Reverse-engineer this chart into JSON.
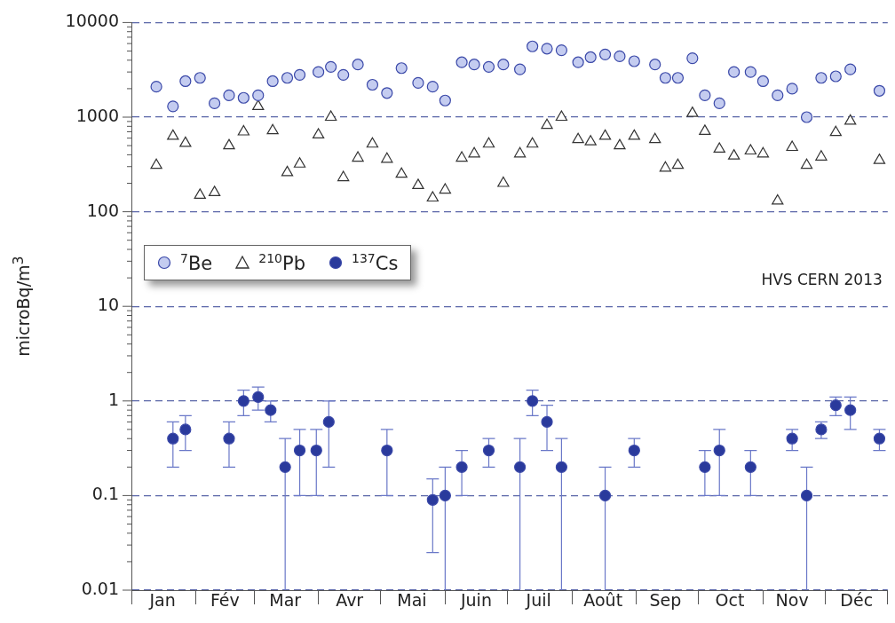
{
  "chart_data": {
    "type": "scatter",
    "ylabel": "microBq/m$^{3}$",
    "log": "y",
    "grid": "y",
    "legend": "left",
    "annotations": [
      "HVS CERN 2013"
    ],
    "xlim": [
      "--01-01",
      "--12-31"
    ],
    "xticks": [
      {
        "value": "--01-01",
        "label": null
      },
      {
        "value": "--01-16",
        "label": "Jan"
      },
      {
        "value": "--02-01",
        "label": null
      },
      {
        "value": "--02-15",
        "label": "Fév"
      },
      {
        "value": "--03-01",
        "label": null
      },
      {
        "value": "--03-16",
        "label": "Mar"
      },
      {
        "value": "--04-01",
        "label": null
      },
      {
        "value": "--04-16",
        "label": "Avr"
      },
      {
        "value": "--05-01",
        "label": null
      },
      {
        "value": "--05-16",
        "label": "Mai"
      },
      {
        "value": "--06-01",
        "label": null
      },
      {
        "value": "--06-16",
        "label": "Juin"
      },
      {
        "value": "--07-01",
        "label": null
      },
      {
        "value": "--07-16",
        "label": "Juil"
      },
      {
        "value": "--08-01",
        "label": null
      },
      {
        "value": "--08-16",
        "label": "Août"
      },
      {
        "value": "--09-01",
        "label": null
      },
      {
        "value": "--09-15",
        "label": "Sep"
      },
      {
        "value": "--10-01",
        "label": null
      },
      {
        "value": "--10-16",
        "label": "Oct"
      },
      {
        "value": "--11-01",
        "label": null
      },
      {
        "value": "--11-15",
        "label": "Nov"
      },
      {
        "value": "--12-01",
        "label": null
      },
      {
        "value": "--12-16",
        "label": "Déc"
      },
      {
        "value": "--12-31",
        "label": null
      }
    ],
    "ylim": [
      0.01,
      10000
    ],
    "yticks": [
      0.01,
      {
        "value": 0.02,
        "label": null
      },
      {
        "value": 0.03,
        "label": null
      },
      {
        "value": 0.04,
        "label": null
      },
      {
        "value": 0.05,
        "label": null
      },
      {
        "value": 0.06,
        "label": null
      },
      {
        "value": 0.07,
        "label": null
      },
      {
        "value": 0.08,
        "label": null
      },
      {
        "value": 0.09,
        "label": null
      },
      0.1,
      {
        "value": 0.2,
        "label": null
      },
      {
        "value": 0.3,
        "label": null
      },
      {
        "value": 0.4,
        "label": null
      },
      {
        "value": 0.5,
        "label": null
      },
      {
        "value": 0.6,
        "label": null
      },
      {
        "value": 0.7,
        "label": null
      },
      {
        "value": 0.8,
        "label": null
      },
      {
        "value": 0.9,
        "label": null
      },
      1,
      {
        "value": 2,
        "label": null
      },
      {
        "value": 3,
        "label": null
      },
      {
        "value": 4,
        "label": null
      },
      {
        "value": 5,
        "label": null
      },
      {
        "value": 6,
        "label": null
      },
      {
        "value": 7,
        "label": null
      },
      {
        "value": 8,
        "label": null
      },
      {
        "value": 9,
        "label": null
      },
      10,
      {
        "value": 20,
        "label": null
      },
      {
        "value": 30,
        "label": null
      },
      {
        "value": 40,
        "label": null
      },
      {
        "value": 50,
        "label": null
      },
      {
        "value": 60,
        "label": null
      },
      {
        "value": 70,
        "label": null
      },
      {
        "value": 80,
        "label": null
      },
      {
        "value": 90,
        "label": null
      },
      100,
      {
        "value": 200,
        "label": null
      },
      {
        "value": 300,
        "label": null
      },
      {
        "value": 400,
        "label": null
      },
      {
        "value": 500,
        "label": null
      },
      {
        "value": 600,
        "label": null
      },
      {
        "value": 700,
        "label": null
      },
      {
        "value": 800,
        "label": null
      },
      {
        "value": 900,
        "label": null
      },
      1000,
      {
        "value": 2000,
        "label": null
      },
      {
        "value": 3000,
        "label": null
      },
      {
        "value": 4000,
        "label": null
      },
      {
        "value": 5000,
        "label": null
      },
      {
        "value": 6000,
        "label": null
      },
      {
        "value": 7000,
        "label": null
      },
      {
        "value": 8000,
        "label": null
      },
      {
        "value": 9000,
        "label": null
      },
      10000
    ],
    "x": [
      "--01-13",
      "--01-21",
      "--01-27",
      "--02-03",
      "--02-10",
      "--02-17",
      "--02-24",
      "--03-03",
      "--03-10",
      "--03-17",
      "--03-23",
      "--04-01",
      "--04-07",
      "--04-13",
      "--04-20",
      "--04-27",
      "--05-04",
      "--05-11",
      "--05-19",
      "--05-26",
      "--06-01",
      "--06-09",
      "--06-15",
      "--06-22",
      "--06-29",
      "--07-07",
      "--07-13",
      "--07-20",
      "--07-27",
      "--08-04",
      "--08-10",
      "--08-17",
      "--08-24",
      "--08-31",
      "--09-10",
      "--09-15",
      "--09-21",
      "--09-28",
      "--10-04",
      "--10-11",
      "--10-18",
      "--10-26",
      "--11-01",
      "--11-08",
      "--11-15",
      "--11-22",
      "--11-29",
      "--12-06",
      "--12-13",
      "--12-27"
    ],
    "series": [
      {
        "name": "$^{7}$Be",
        "color": "#c4ccf0",
        "marker": "circle",
        "values": [
          2100,
          1300,
          2400,
          2600,
          1400,
          1700,
          1600,
          1700,
          2400,
          2600,
          2800,
          3000,
          3400,
          2800,
          3600,
          2200,
          1800,
          3300,
          2300,
          2100,
          1500,
          3800,
          3600,
          3400,
          3600,
          3200,
          5600,
          5300,
          5100,
          3800,
          4300,
          4600,
          4400,
          3900,
          3600,
          2600,
          2600,
          4200,
          1700,
          1400,
          3000,
          3000,
          2400,
          1700,
          2000,
          1000,
          2600,
          2700,
          3200,
          1900
        ]
      },
      {
        "name": "$^{210}$Pb",
        "color": "#333333",
        "marker": "triangle",
        "values": [
          310,
          630,
          530,
          150,
          160,
          500,
          700,
          1300,
          720,
          260,
          320,
          650,
          1000,
          230,
          370,
          520,
          360,
          250,
          190,
          140,
          170,
          370,
          410,
          520,
          200,
          410,
          520,
          820,
          1000,
          580,
          550,
          630,
          500,
          630,
          580,
          290,
          310,
          1100,
          710,
          460,
          390,
          440,
          410,
          130,
          480,
          310,
          380,
          690,
          910,
          350
        ]
      },
      {
        "name": "$^{137}$Cs",
        "color": "#2a3a9c",
        "marker": "circle",
        "x": [
          "--01-21",
          "--01-27",
          "--02-17",
          "--02-24",
          "--03-03",
          "--03-09",
          "--03-16",
          "--03-23",
          "--03-31",
          "--04-06",
          "--05-04",
          "--05-26",
          "--06-01",
          "--06-09",
          "--06-22",
          "--07-07",
          "--07-13",
          "--07-20",
          "--07-27",
          "--08-17",
          "--08-31",
          "--10-04",
          "--10-11",
          "--10-26",
          "--11-15",
          "--11-22",
          "--11-29",
          "--12-06",
          "--12-13",
          "--12-27"
        ],
        "values": [
          0.4,
          0.5,
          0.4,
          1.0,
          1.1,
          0.8,
          0.2,
          0.3,
          0.3,
          0.6,
          0.3,
          0.09,
          0.1,
          0.2,
          0.3,
          0.2,
          1.0,
          0.6,
          0.2,
          0.1,
          0.3,
          0.2,
          0.3,
          0.2,
          0.4,
          0.1,
          0.5,
          0.9,
          0.8,
          0.4
        ],
        "errors": [
          [
            0.2,
            0.6
          ],
          [
            0.3,
            0.7
          ],
          [
            0.2,
            0.6
          ],
          [
            0.7,
            1.3
          ],
          [
            0.8,
            1.4
          ],
          [
            0.6,
            1.0
          ],
          [
            0.01,
            0.4
          ],
          [
            0.1,
            0.5
          ],
          [
            0.1,
            0.5
          ],
          [
            0.2,
            1.0
          ],
          [
            0.1,
            0.5
          ],
          [
            0.025,
            0.15
          ],
          [
            0.01,
            0.2
          ],
          [
            0.1,
            0.3
          ],
          [
            0.2,
            0.4
          ],
          [
            0.01,
            0.4
          ],
          [
            0.7,
            1.3
          ],
          [
            0.3,
            0.9
          ],
          [
            0.01,
            0.4
          ],
          [
            0.01,
            0.2
          ],
          [
            0.2,
            0.4
          ],
          [
            0.1,
            0.3
          ],
          [
            0.1,
            0.5
          ],
          [
            0.1,
            0.3
          ],
          [
            0.3,
            0.5
          ],
          [
            0.01,
            0.2
          ],
          [
            0.4,
            0.6
          ],
          [
            0.7,
            1.1
          ],
          [
            0.5,
            1.1
          ],
          [
            0.3,
            0.5
          ]
        ]
      }
    ]
  }
}
